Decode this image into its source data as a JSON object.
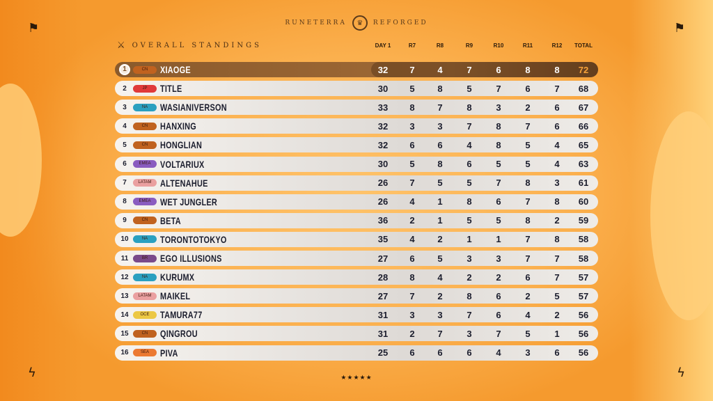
{
  "brand": {
    "left": "RUNETERRA",
    "right": "REFORGED",
    "logo_icon": "crest-icon"
  },
  "title": "OVERALL STANDINGS",
  "columns": [
    "DAY 1",
    "R7",
    "R8",
    "R9",
    "R10",
    "R11",
    "R12",
    "TOTAL"
  ],
  "region_colors": {
    "CN": "#c0621f",
    "JP": "#e03a3a",
    "NA": "#2aa0c0",
    "EMEA": "#8a5cc0",
    "LATAM": "#eaa0a0",
    "BR": "#7a4a8a",
    "OCE": "#ecc844",
    "SEA": "#ec7a32"
  },
  "rows": [
    {
      "rank": "1",
      "region": "CN",
      "name": "XIAOGE",
      "scores": [
        "32",
        "7",
        "4",
        "7",
        "6",
        "8",
        "8"
      ],
      "total": "72"
    },
    {
      "rank": "2",
      "region": "JP",
      "name": "TITLE",
      "scores": [
        "30",
        "5",
        "8",
        "5",
        "7",
        "6",
        "7"
      ],
      "total": "68"
    },
    {
      "rank": "3",
      "region": "NA",
      "name": "WASIANIVERSON",
      "scores": [
        "33",
        "8",
        "7",
        "8",
        "3",
        "2",
        "6"
      ],
      "total": "67"
    },
    {
      "rank": "4",
      "region": "CN",
      "name": "HANXING",
      "scores": [
        "32",
        "3",
        "3",
        "7",
        "8",
        "7",
        "6"
      ],
      "total": "66"
    },
    {
      "rank": "5",
      "region": "CN",
      "name": "HONGLIAN",
      "scores": [
        "32",
        "6",
        "6",
        "4",
        "8",
        "5",
        "4"
      ],
      "total": "65"
    },
    {
      "rank": "6",
      "region": "EMEA",
      "name": "VOLTARIUX",
      "scores": [
        "30",
        "5",
        "8",
        "6",
        "5",
        "5",
        "4"
      ],
      "total": "63"
    },
    {
      "rank": "7",
      "region": "LATAM",
      "name": "ALTENAHUE",
      "scores": [
        "26",
        "7",
        "5",
        "5",
        "7",
        "8",
        "3"
      ],
      "total": "61"
    },
    {
      "rank": "8",
      "region": "EMEA",
      "name": "WET JUNGLER",
      "scores": [
        "26",
        "4",
        "1",
        "8",
        "6",
        "7",
        "8"
      ],
      "total": "60"
    },
    {
      "rank": "9",
      "region": "CN",
      "name": "BETA",
      "scores": [
        "36",
        "2",
        "1",
        "5",
        "5",
        "8",
        "2"
      ],
      "total": "59"
    },
    {
      "rank": "10",
      "region": "NA",
      "name": "TORONTOTOKYO",
      "scores": [
        "35",
        "4",
        "2",
        "1",
        "1",
        "7",
        "8"
      ],
      "total": "58"
    },
    {
      "rank": "11",
      "region": "BR",
      "name": "EGO ILLUSIONS",
      "scores": [
        "27",
        "6",
        "5",
        "3",
        "3",
        "7",
        "7"
      ],
      "total": "58"
    },
    {
      "rank": "12",
      "region": "NA",
      "name": "KURUMX",
      "scores": [
        "28",
        "8",
        "4",
        "2",
        "2",
        "6",
        "7"
      ],
      "total": "57"
    },
    {
      "rank": "13",
      "region": "LATAM",
      "name": "MAIKEL",
      "scores": [
        "27",
        "7",
        "2",
        "8",
        "6",
        "2",
        "5"
      ],
      "total": "57"
    },
    {
      "rank": "14",
      "region": "OCE",
      "name": "TAMURA77",
      "scores": [
        "31",
        "3",
        "3",
        "7",
        "6",
        "4",
        "2"
      ],
      "total": "56"
    },
    {
      "rank": "15",
      "region": "CN",
      "name": "QINGROU",
      "scores": [
        "31",
        "2",
        "7",
        "3",
        "7",
        "5",
        "1"
      ],
      "total": "56"
    },
    {
      "rank": "16",
      "region": "SEA",
      "name": "PIVA",
      "scores": [
        "25",
        "6",
        "6",
        "6",
        "4",
        "3",
        "6"
      ],
      "total": "56"
    }
  ],
  "footer": "★★★★★"
}
